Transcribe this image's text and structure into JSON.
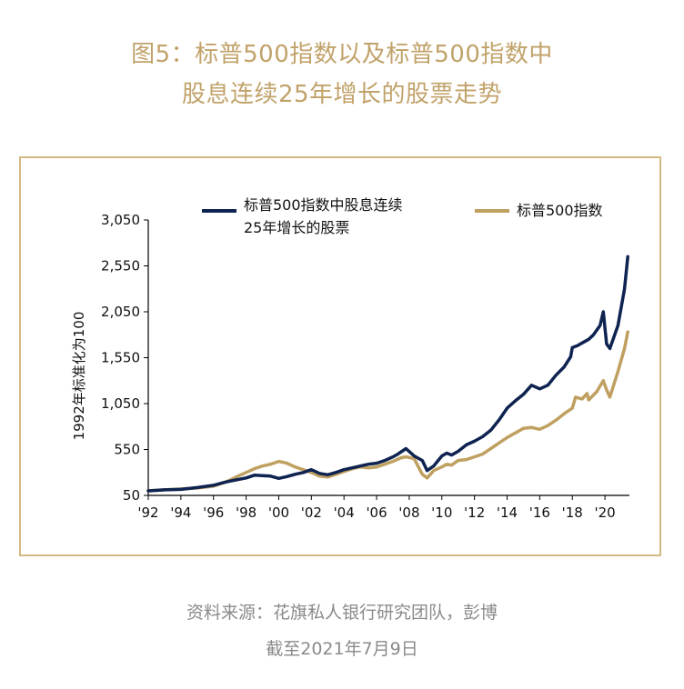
{
  "title_line1": "图5：标普500指数以及标普500指数中",
  "title_line2": "股息连续25年增长的股票走势",
  "source_line1": "资料来源：花旗私人银行研究团队，彭博",
  "source_line2": "截至2021年7月9日",
  "colors": {
    "title": "#c1a26a",
    "frame": "#d2ba84",
    "navy": "#0e2350",
    "gold": "#bfa060",
    "footer": "#8a8a8a"
  },
  "chart_data": {
    "type": "line",
    "ylabel": "1992年标准化为100",
    "xlabel": "",
    "ylim": [
      50,
      3050
    ],
    "xlim": [
      1992,
      2021.5
    ],
    "yticks": [
      50,
      550,
      1050,
      1550,
      2050,
      2550,
      3050
    ],
    "ytick_labels": [
      "50",
      "550",
      "1,050",
      "1,550",
      "2,050",
      "2,550",
      "3,050"
    ],
    "xticks": [
      1992,
      1994,
      1996,
      1998,
      2000,
      2002,
      2004,
      2006,
      2008,
      2010,
      2012,
      2014,
      2016,
      2018,
      2020
    ],
    "xtick_labels": [
      "'92",
      "'94",
      "'96",
      "'98",
      "'00",
      "'02",
      "'04",
      "'06",
      "'08",
      "'10",
      "'12",
      "'14",
      "'16",
      "'18",
      "'20"
    ],
    "grid": false,
    "legend_position": "top",
    "series": [
      {
        "name": "标普500指数中股息连续25年增长的股票",
        "legend_line1": "标普500指数中股息连续",
        "legend_line2": "25年增长的股票",
        "color": "#0e2350",
        "x": [
          1992,
          1993,
          1994,
          1995,
          1996,
          1996.5,
          1997,
          1998,
          1998.5,
          1999,
          1999.5,
          2000,
          2000.5,
          2001,
          2001.5,
          2002,
          2002.5,
          2003,
          2003.5,
          2004,
          2004.5,
          2005,
          2005.5,
          2006,
          2006.5,
          2007,
          2007.3,
          2007.8,
          2008.3,
          2008.8,
          2009.1,
          2009.5,
          2010,
          2010.3,
          2010.6,
          2011,
          2011.5,
          2012,
          2012.5,
          2013,
          2013.5,
          2014,
          2014.5,
          2015,
          2015.5,
          2016,
          2016.5,
          2017,
          2017.5,
          2017.9,
          2018,
          2018.3,
          2018.7,
          2019,
          2019.3,
          2019.7,
          2019.9,
          2020.1,
          2020.3,
          2020.8,
          2021.2,
          2021.4
        ],
        "values": [
          100,
          110,
          115,
          135,
          160,
          185,
          205,
          240,
          270,
          265,
          260,
          235,
          255,
          280,
          300,
          330,
          290,
          275,
          300,
          330,
          350,
          370,
          390,
          400,
          430,
          470,
          500,
          560,
          480,
          430,
          320,
          370,
          480,
          510,
          490,
          530,
          600,
          640,
          690,
          760,
          870,
          1000,
          1080,
          1150,
          1250,
          1210,
          1250,
          1360,
          1450,
          1560,
          1660,
          1680,
          1720,
          1750,
          1800,
          1900,
          2050,
          1700,
          1650,
          1900,
          2300,
          2650
        ]
      },
      {
        "name": "标普500指数",
        "color": "#bfa060",
        "x": [
          1992,
          1993,
          1994,
          1995,
          1996,
          1996.5,
          1997,
          1997.5,
          1998,
          1998.5,
          1999,
          1999.5,
          2000,
          2000.5,
          2001,
          2001.5,
          2002,
          2002.5,
          2003,
          2003.5,
          2004,
          2004.5,
          2005,
          2005.5,
          2006,
          2006.5,
          2007,
          2007.5,
          2007.8,
          2008.3,
          2008.8,
          2009.1,
          2009.5,
          2010,
          2010.3,
          2010.6,
          2011,
          2011.5,
          2012,
          2012.5,
          2013,
          2013.5,
          2014,
          2014.5,
          2015,
          2015.5,
          2016,
          2016.5,
          2017,
          2017.5,
          2018,
          2018.2,
          2018.6,
          2018.9,
          2019,
          2019.5,
          2019.9,
          2020.1,
          2020.3,
          2020.8,
          2021.2,
          2021.4
        ],
        "values": [
          100,
          110,
          120,
          130,
          150,
          180,
          215,
          260,
          300,
          340,
          370,
          390,
          420,
          400,
          360,
          330,
          300,
          260,
          250,
          280,
          310,
          340,
          360,
          350,
          360,
          390,
          420,
          460,
          470,
          450,
          280,
          240,
          320,
          360,
          390,
          380,
          430,
          440,
          470,
          500,
          560,
          620,
          680,
          730,
          780,
          790,
          770,
          810,
          870,
          940,
          1000,
          1120,
          1100,
          1160,
          1090,
          1180,
          1300,
          1200,
          1120,
          1400,
          1650,
          1830
        ]
      }
    ]
  }
}
